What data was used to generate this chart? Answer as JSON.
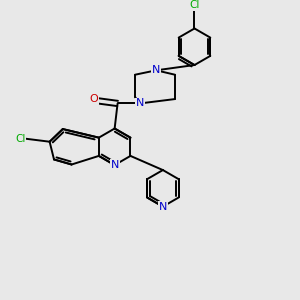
{
  "bg_color": "#e8e8e8",
  "bond_color": "#000000",
  "nitrogen_color": "#0000cc",
  "oxygen_color": "#cc0000",
  "chlorine_color": "#00aa00",
  "line_width": 1.4,
  "figsize": [
    3.0,
    3.0
  ],
  "dpi": 100,
  "xlim": [
    0,
    10
  ],
  "ylim": [
    0,
    10
  ]
}
